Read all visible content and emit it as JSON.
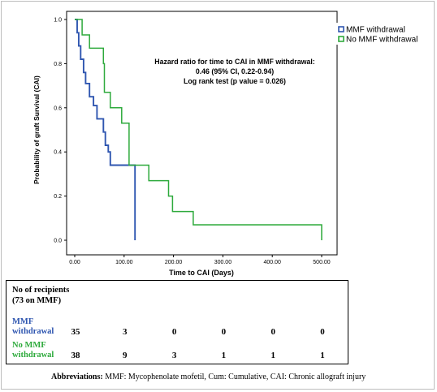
{
  "chart_data": {
    "type": "line",
    "subtype": "kaplan-meier step curves",
    "xlabel": "Time to CAI (Days)",
    "ylabel": "Probability of graft Survival (CAI)",
    "xlim": [
      0,
      500
    ],
    "ylim": [
      0,
      1.0
    ],
    "x_ticks": [
      "0.00",
      "100.00",
      "200.00",
      "300.00",
      "400.00",
      "500.00"
    ],
    "x_tick_values": [
      0,
      100,
      200,
      300,
      400,
      500
    ],
    "y_ticks": [
      "0.0",
      "0.2",
      "0.4",
      "0.6",
      "0.8",
      "1.0"
    ],
    "y_tick_values": [
      0,
      0.2,
      0.4,
      0.6,
      0.8,
      1.0
    ],
    "grid": false,
    "legend_position": "top-right",
    "annotation": [
      "Hazard ratio for time to CAI in MMF withdrawal:",
      "0.46 (95% CI, 0.22-0.94)",
      "Log rank test (p value = 0.026)"
    ],
    "series": [
      {
        "name": "MMF withdrawal",
        "color": "#2f56b0",
        "points": [
          [
            0,
            1.0
          ],
          [
            5,
            1.0
          ],
          [
            5,
            0.94
          ],
          [
            8,
            0.94
          ],
          [
            8,
            0.88
          ],
          [
            12,
            0.88
          ],
          [
            12,
            0.82
          ],
          [
            18,
            0.82
          ],
          [
            18,
            0.76
          ],
          [
            22,
            0.76
          ],
          [
            22,
            0.71
          ],
          [
            30,
            0.71
          ],
          [
            30,
            0.65
          ],
          [
            38,
            0.65
          ],
          [
            38,
            0.61
          ],
          [
            45,
            0.61
          ],
          [
            45,
            0.55
          ],
          [
            58,
            0.55
          ],
          [
            58,
            0.49
          ],
          [
            62,
            0.49
          ],
          [
            62,
            0.43
          ],
          [
            68,
            0.43
          ],
          [
            68,
            0.4
          ],
          [
            72,
            0.4
          ],
          [
            72,
            0.34
          ],
          [
            122,
            0.34
          ],
          [
            122,
            0.0
          ]
        ]
      },
      {
        "name": "No MMF withdrawal",
        "color": "#2eaa3c",
        "points": [
          [
            0,
            1.0
          ],
          [
            15,
            1.0
          ],
          [
            15,
            0.93
          ],
          [
            30,
            0.93
          ],
          [
            30,
            0.87
          ],
          [
            58,
            0.87
          ],
          [
            58,
            0.8
          ],
          [
            60,
            0.8
          ],
          [
            60,
            0.67
          ],
          [
            72,
            0.67
          ],
          [
            72,
            0.6
          ],
          [
            95,
            0.6
          ],
          [
            95,
            0.53
          ],
          [
            110,
            0.53
          ],
          [
            110,
            0.34
          ],
          [
            150,
            0.34
          ],
          [
            150,
            0.27
          ],
          [
            190,
            0.27
          ],
          [
            190,
            0.2
          ],
          [
            198,
            0.2
          ],
          [
            198,
            0.13
          ],
          [
            240,
            0.13
          ],
          [
            240,
            0.07
          ],
          [
            500,
            0.07
          ],
          [
            500,
            0.0
          ]
        ]
      }
    ]
  },
  "risk_table": {
    "title_line1": "No of recipients",
    "title_line2": "(73 on MMF)",
    "rows": [
      {
        "label_line1": "MMF",
        "label_line2": "withdrawal",
        "color": "#2f56b0",
        "counts": [
          "35",
          "3",
          "0",
          "0",
          "0",
          "0"
        ]
      },
      {
        "label_line1": "No MMF",
        "label_line2": "withdrawal",
        "color": "#2eaa3c",
        "counts": [
          "38",
          "9",
          "3",
          "1",
          "1",
          "1"
        ]
      }
    ]
  },
  "abbreviations": {
    "label": "Abbreviations:",
    "text": "MMF: Mycophenolate mofetil, Cum: Cumulative, CAI: Chronic allograft injury"
  }
}
